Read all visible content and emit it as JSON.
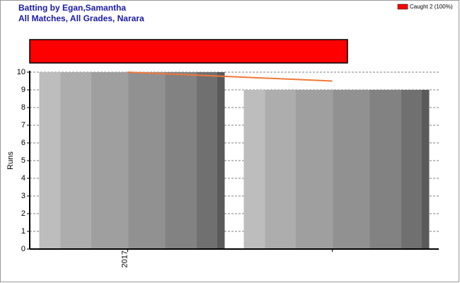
{
  "chart_data": {
    "type": "bar",
    "title": "Batting by Egan,Samantha",
    "subtitle": "All Matches, All Grades, Narara",
    "y_label": "Runs",
    "categories": [
      "2017",
      null
    ],
    "values": [
      10,
      9
    ],
    "average_line": {
      "values": [
        10,
        9.5
      ],
      "color": "#f07838"
    },
    "dismissals": [
      {
        "name": "Caught 2 (100%)",
        "value": 100,
        "color": "#ff0000"
      }
    ],
    "ylim": [
      0,
      10
    ],
    "yticks": [
      0,
      1,
      2,
      3,
      4,
      5,
      6,
      7,
      8,
      9,
      10
    ],
    "grid": true
  }
}
